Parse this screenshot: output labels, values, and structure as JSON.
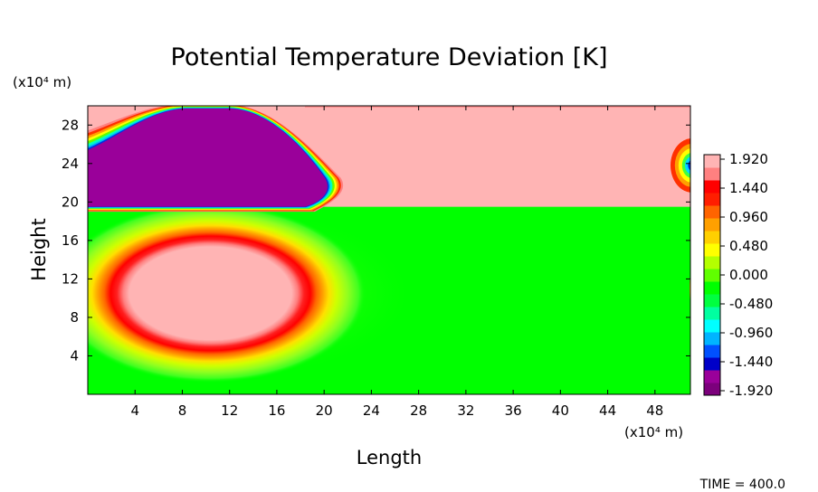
{
  "chart_data": {
    "type": "heatmap",
    "title": "Potential Temperature Deviation [K]",
    "xlabel": "Length",
    "ylabel": "Height",
    "x_unit": "(x10⁴ m)",
    "y_unit": "(x10⁴ m)",
    "xlim": [
      0,
      51
    ],
    "ylim": [
      0,
      30
    ],
    "x_ticks": [
      4,
      8,
      12,
      16,
      20,
      24,
      28,
      32,
      36,
      40,
      44,
      48
    ],
    "y_ticks": [
      4,
      8,
      12,
      16,
      20,
      24,
      28
    ],
    "colorbar": {
      "range": [
        -1.92,
        1.92
      ],
      "labels": [
        "1.920",
        "1.440",
        "0.960",
        "0.480",
        "0.000",
        "-0.480",
        "-0.960",
        "-1.440",
        "-1.920"
      ],
      "colors": [
        "#7c007c",
        "#9a009a",
        "#0000c8",
        "#0050ff",
        "#00b4ff",
        "#00ffff",
        "#00ffa0",
        "#00ff40",
        "#00ff00",
        "#60ff00",
        "#b4ff00",
        "#ffff00",
        "#ffd000",
        "#ffa000",
        "#ff6400",
        "#ff1e00",
        "#ff0000",
        "#ff8080",
        "#ffb4b4"
      ]
    },
    "features": [
      {
        "kind": "warm-bubble",
        "center": [
          10,
          10.5
        ],
        "radii": [
          10,
          6
        ],
        "value": 1.92
      },
      {
        "kind": "cold-region",
        "center": [
          10,
          24.5
        ],
        "extent_y": [
          19.5,
          30
        ],
        "value": -1.92
      },
      {
        "kind": "warm-layer",
        "extent_y": [
          19.5,
          30
        ],
        "value": 1.92
      }
    ],
    "annotation": "TIME = 400.0"
  }
}
